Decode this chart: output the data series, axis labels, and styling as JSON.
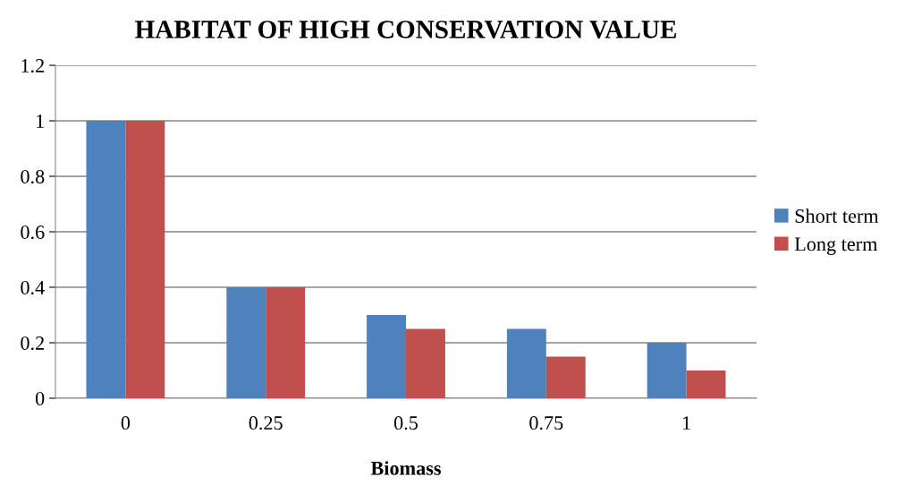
{
  "chart_data": {
    "type": "bar",
    "title": "HABITAT OF HIGH CONSERVATION VALUE",
    "xlabel": "Biomass",
    "categories": [
      "0",
      "0.25",
      "0.5",
      "0.75",
      "1"
    ],
    "series": [
      {
        "name": "Short term",
        "color": "#4f81bd",
        "values": [
          1,
          0.4,
          0.3,
          0.25,
          0.2
        ]
      },
      {
        "name": "Long term",
        "color": "#c0504d",
        "values": [
          1,
          0.4,
          0.25,
          0.15,
          0.1
        ]
      }
    ],
    "ylim": [
      0,
      1.2
    ],
    "yticks": [
      0,
      0.2,
      0.4,
      0.6,
      0.8,
      1,
      1.2
    ],
    "grid": "y",
    "legend": "right"
  }
}
